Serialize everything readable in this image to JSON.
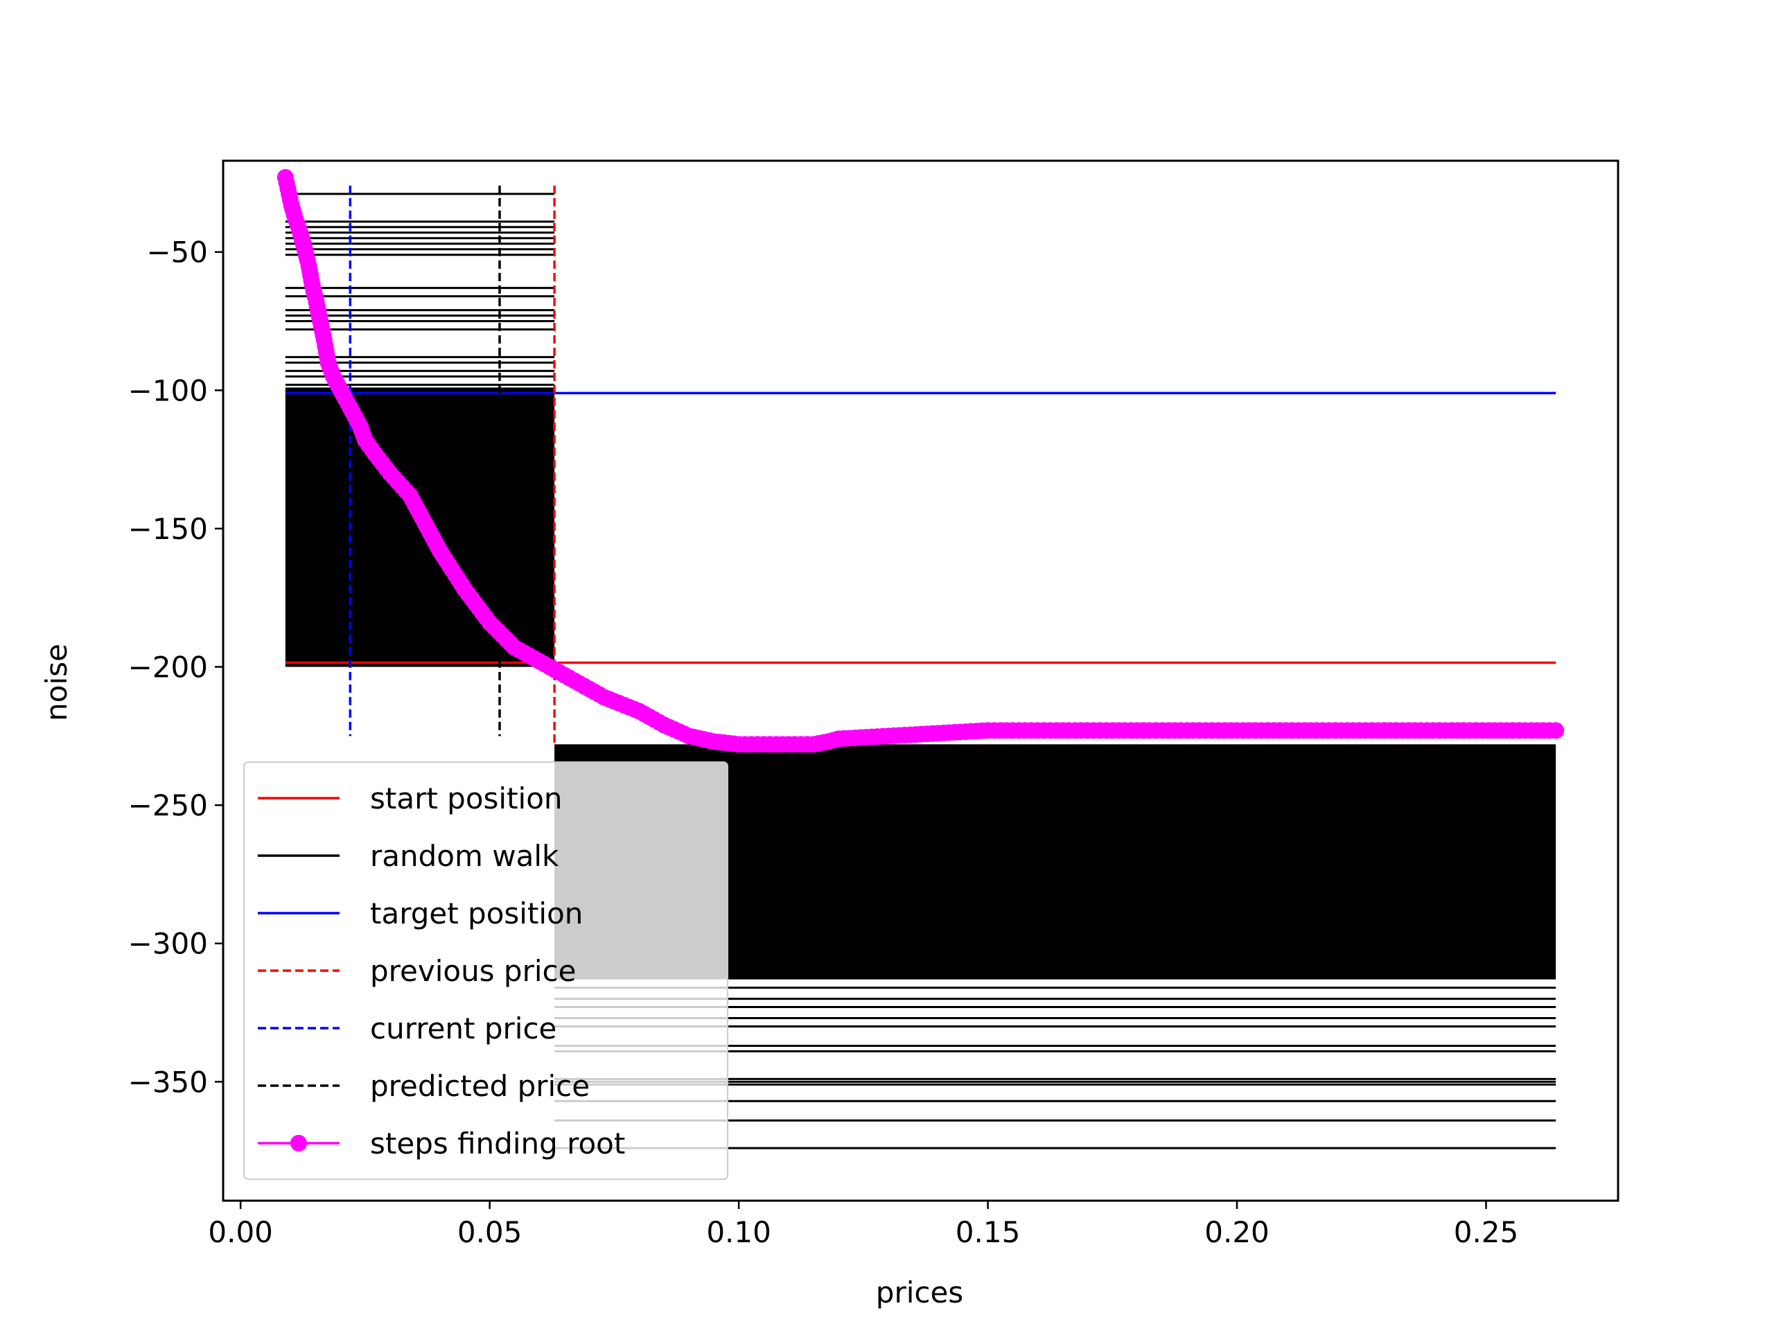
{
  "chart_data": {
    "type": "line",
    "title": "",
    "xlabel": "prices",
    "ylabel": "noise",
    "xlim": [
      -0.0035,
      0.2765
    ],
    "ylim": [
      -393,
      -17
    ],
    "xticks": [
      0.0,
      0.05,
      0.1,
      0.15,
      0.2,
      0.25
    ],
    "xtick_labels": [
      "0.00",
      "0.05",
      "0.10",
      "0.15",
      "0.20",
      "0.25"
    ],
    "yticks": [
      -50,
      -100,
      -150,
      -200,
      -250,
      -300,
      -350
    ],
    "ytick_labels": [
      "−50",
      "−100",
      "−150",
      "−200",
      "−250",
      "−300",
      "−350"
    ],
    "grid": false,
    "legend_position": "lower-left",
    "colors": {
      "start": "#ff0000",
      "walk": "#000000",
      "target": "#0000ff",
      "previous": "#ff0000",
      "current": "#0000ff",
      "predicted": "#000000",
      "steps": "#ff00ff"
    },
    "hlines": {
      "start_position": {
        "y": -198.5,
        "x_range": [
          0.009,
          0.264
        ]
      },
      "target_position": {
        "y": -101,
        "x_range": [
          0.009,
          0.264
        ]
      }
    },
    "vlines": {
      "previous_price": {
        "x": 0.063,
        "y_range": [
          -229,
          -26
        ]
      },
      "current_price": {
        "x": 0.022,
        "y_range": [
          -225,
          -26
        ]
      },
      "predicted_price": {
        "x": 0.052,
        "y_range": [
          -225,
          -26
        ]
      }
    },
    "random_walk": {
      "upper_x_range": [
        0.009,
        0.063
      ],
      "upper_levels": [
        -29,
        -39,
        -41,
        -43,
        -45,
        -47,
        -49,
        -51,
        -63,
        -66,
        -71,
        -73,
        -75,
        -78,
        -88,
        -90,
        -93,
        -95,
        -98
      ],
      "upper_dense_range": [
        -99,
        -200
      ],
      "lower_x_range": [
        0.063,
        0.264
      ],
      "lower_dense_range": [
        -228,
        -313
      ],
      "lower_levels": [
        -316,
        -320,
        -323,
        -327,
        -330,
        -337,
        -339,
        -349,
        -350,
        -351,
        -357,
        -364,
        -374
      ]
    },
    "series": [
      {
        "name": "steps finding root",
        "x": [
          0.009,
          0.0102,
          0.011,
          0.0118,
          0.0126,
          0.0137,
          0.0144,
          0.0152,
          0.016,
          0.0168,
          0.0176,
          0.0186,
          0.0198,
          0.021,
          0.0225,
          0.024,
          0.025,
          0.027,
          0.03,
          0.034,
          0.037,
          0.04,
          0.045,
          0.05,
          0.055,
          0.06,
          0.063,
          0.068,
          0.073,
          0.08,
          0.085,
          0.09,
          0.095,
          0.1,
          0.105,
          0.11,
          0.115,
          0.118,
          0.12,
          0.13,
          0.14,
          0.15,
          0.16,
          0.2,
          0.264
        ],
        "y": [
          -23,
          -33,
          -38,
          -42,
          -47,
          -55,
          -62,
          -68,
          -75,
          -82,
          -90,
          -95,
          -99,
          -103,
          -108,
          -113,
          -118,
          -123,
          -130,
          -138,
          -148,
          -158,
          -172,
          -184,
          -193,
          -198,
          -201,
          -206,
          -211,
          -216,
          -221,
          -225,
          -227,
          -228,
          -228,
          -228,
          -228,
          -227,
          -226,
          -225,
          -224,
          -223,
          -223,
          -223,
          -223
        ]
      }
    ],
    "legend": [
      {
        "label": "start position",
        "style": "solid",
        "color": "#ff0000"
      },
      {
        "label": "random walk",
        "style": "solid",
        "color": "#000000"
      },
      {
        "label": "target position",
        "style": "solid",
        "color": "#0000ff"
      },
      {
        "label": "previous price",
        "style": "dashed",
        "color": "#ff0000"
      },
      {
        "label": "current price",
        "style": "dashed",
        "color": "#0000ff"
      },
      {
        "label": "predicted price",
        "style": "dashed",
        "color": "#000000"
      },
      {
        "label": "steps finding root",
        "style": "marker",
        "color": "#ff00ff"
      }
    ]
  }
}
